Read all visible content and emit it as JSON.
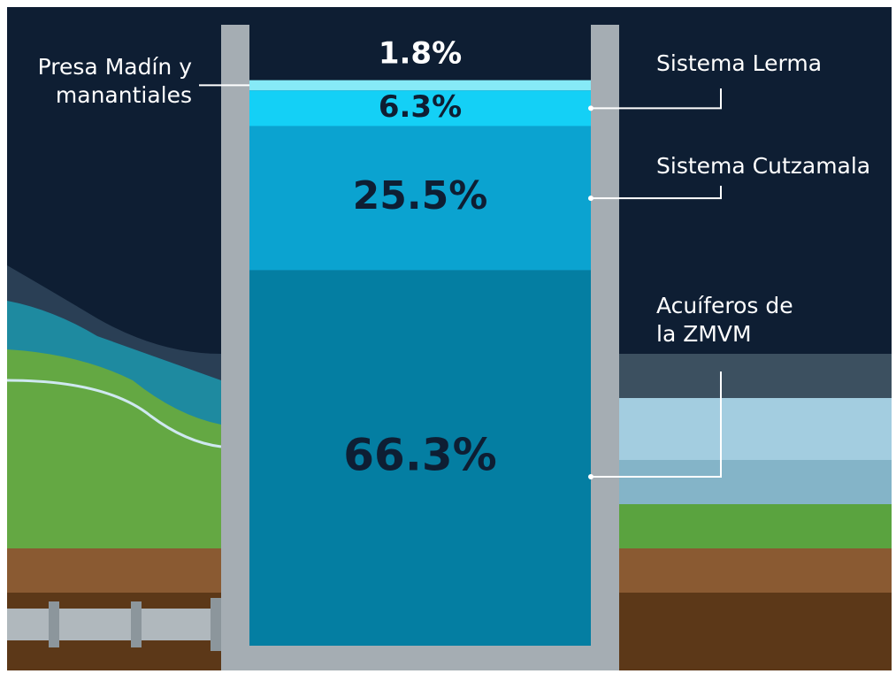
{
  "chart_data": {
    "type": "tank",
    "series": [
      {
        "name": "Acuíferos de la ZMVM",
        "color": "#047ea2",
        "values": [
          66.3
        ],
        "value_labels": [
          "66.3%"
        ]
      },
      {
        "name": "Sistema Cutzamala",
        "color": "#0ba3d0",
        "values": [
          25.5
        ],
        "value_labels": [
          "25.5%"
        ]
      },
      {
        "name": "Sistema Lerma",
        "color": "#14d0f6",
        "values": [
          6.3
        ],
        "value_labels": [
          "6.3%"
        ]
      },
      {
        "name": "Presa Madín y manantiales",
        "color": "#86eaf7",
        "values": [
          1.8
        ],
        "value_labels": [
          "1.8%"
        ]
      }
    ],
    "ylim": [
      0,
      100
    ]
  }
}
